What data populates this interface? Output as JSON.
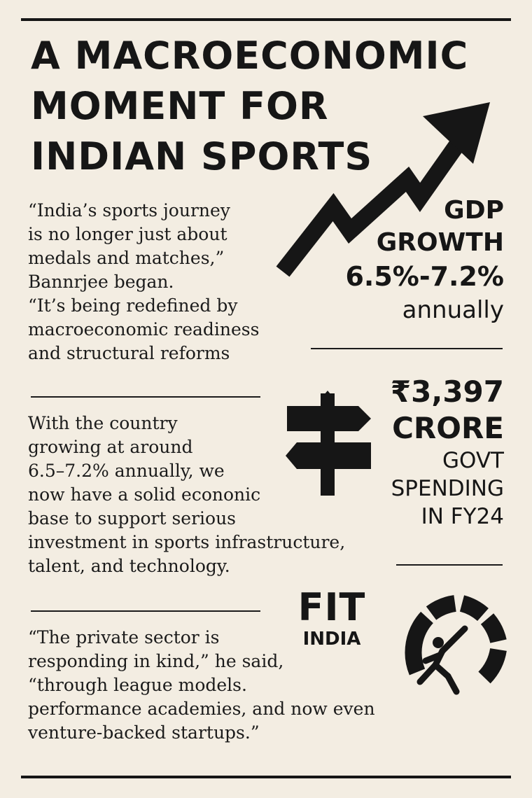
{
  "headline": {
    "lines": [
      "A MACROECONOMIC",
      "MOMENT FOR",
      "INDIAN SPORTS"
    ]
  },
  "quote1": {
    "lines": [
      "“India’s sports journey",
      "is no longer just about",
      "medals and matches,”",
      "Bannrjee began.",
      "“It’s being redefined by",
      "macroeconomic readiness",
      "and structural reforms"
    ]
  },
  "para2": {
    "lines": [
      "With the country",
      "growing at around",
      "6.5–7.2% annually, we",
      "now have a solid econonic",
      "base to support serious",
      "investment in sports infrastructure,",
      "talent, and technology."
    ]
  },
  "quote3": {
    "lines": [
      "“The private sector is",
      "responding in kind,” he said,",
      "“through league models.",
      "performance academies, and now even",
      "venture-backed startups.”"
    ]
  },
  "gdp_stat": {
    "line1": "GDP",
    "line2": "GROWTH",
    "value": "6.5%-7.2%",
    "unit": "annually"
  },
  "spending_stat": {
    "amount": "₹3,397",
    "unit": "CRORE",
    "line3": "GOVT",
    "line4": "SPENDING",
    "line5": "IN FY24"
  },
  "fit_india_logo": {
    "word1": "FIT",
    "word2": "INDIA"
  },
  "icons": [
    "growth-arrow-icon",
    "signpost-icon",
    "athlete-gauge-icon"
  ],
  "colors": {
    "background": "#f3ede2",
    "ink": "#161616"
  }
}
